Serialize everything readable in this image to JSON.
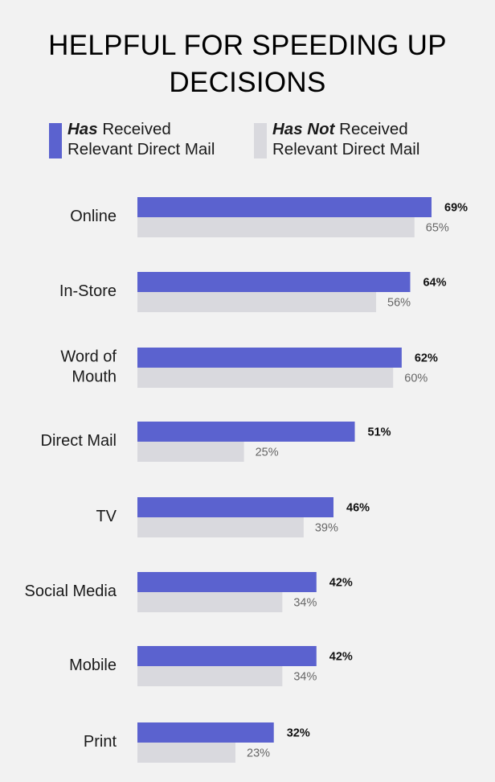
{
  "title_line1": "HELPFUL FOR SPEEDING UP",
  "title_line2": "DECISIONS",
  "legend": [
    {
      "bold": "Has",
      "rest": "Received",
      "line2": "Relevant Direct Mail",
      "color": "#5b62cf"
    },
    {
      "bold": "Has Not",
      "rest": "Received",
      "line2": "Relevant Direct Mail",
      "color": "#d9d9de"
    }
  ],
  "chart_data": {
    "type": "bar",
    "orientation": "horizontal",
    "title": "HELPFUL FOR SPEEDING UP DECISIONS",
    "categories": [
      [
        "Online"
      ],
      [
        "In-Store"
      ],
      [
        "Word of",
        "Mouth"
      ],
      [
        "Direct Mail"
      ],
      [
        "TV"
      ],
      [
        "Social Media"
      ],
      [
        "Mobile"
      ],
      [
        "Print"
      ]
    ],
    "series": [
      {
        "name": "Has Received Relevant Direct Mail",
        "color": "#5b62cf",
        "values": [
          69,
          64,
          62,
          51,
          46,
          42,
          42,
          32
        ],
        "labels": [
          "69%",
          "64%",
          "62%",
          "51%",
          "46%",
          "42%",
          "42%",
          "32%"
        ]
      },
      {
        "name": "Has Not Received Relevant Direct Mail",
        "color": "#d9d9de",
        "values": [
          65,
          56,
          60,
          25,
          39,
          34,
          34,
          23
        ],
        "labels": [
          "65%",
          "56%",
          "60%",
          "25%",
          "39%",
          "34%",
          "34%",
          "23%"
        ]
      }
    ],
    "unit": "%",
    "legend_position": "top",
    "grid": false
  }
}
